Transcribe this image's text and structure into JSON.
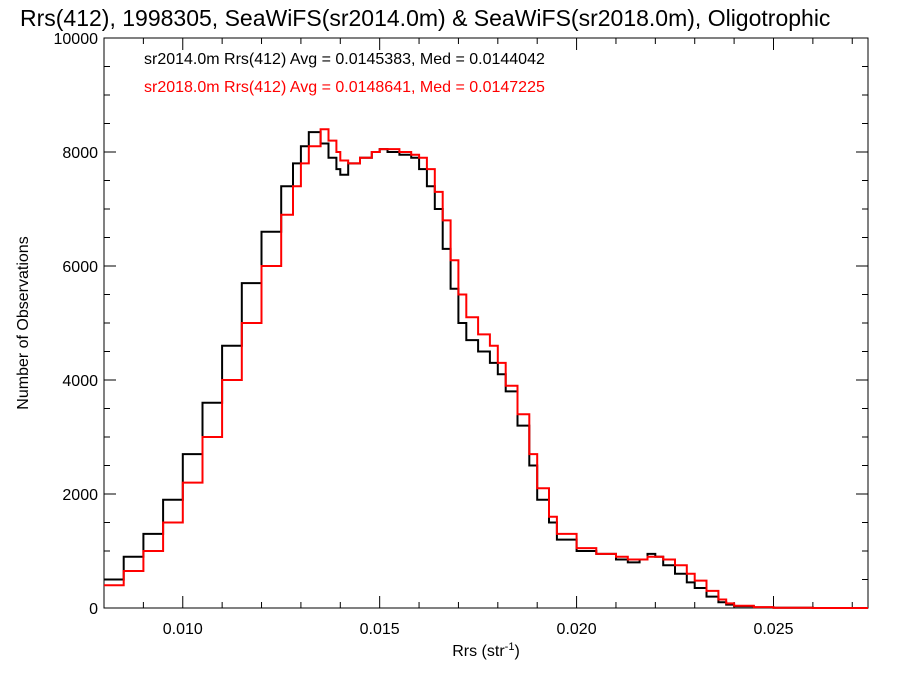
{
  "chart_data": {
    "type": "line",
    "title": "Rrs(412), 1998305, SeaWiFS(sr2014.0m) & SeaWiFS(sr2018.0m), Oligotrophic",
    "xlabel_main": "Rrs (str",
    "xlabel_sup": "-1",
    "xlabel_close": ")",
    "ylabel": "Number of Observations",
    "xlim": [
      0.008,
      0.0274
    ],
    "ylim": [
      0,
      10000
    ],
    "x_ticks": [
      0.01,
      0.015,
      0.02,
      0.025
    ],
    "x_tick_labels": [
      "0.010",
      "0.015",
      "0.020",
      "0.025"
    ],
    "y_ticks": [
      0,
      2000,
      4000,
      6000,
      8000,
      10000
    ],
    "y_tick_labels": [
      "0",
      "2000",
      "4000",
      "6000",
      "8000",
      "10000"
    ],
    "grid": false,
    "legend_position": "top-left",
    "series": [
      {
        "legend_text": "sr2014.0m Rrs(412) Avg = 0.0145383, Med = 0.0144042",
        "color": "#000000",
        "x": [
          0.008,
          0.0085,
          0.009,
          0.0095,
          0.01,
          0.0105,
          0.011,
          0.0115,
          0.012,
          0.0125,
          0.0128,
          0.013,
          0.0132,
          0.0135,
          0.0137,
          0.0139,
          0.014,
          0.0142,
          0.0145,
          0.0148,
          0.015,
          0.0152,
          0.0155,
          0.0158,
          0.016,
          0.0162,
          0.0164,
          0.0166,
          0.0168,
          0.017,
          0.0172,
          0.0175,
          0.0178,
          0.018,
          0.0182,
          0.0185,
          0.0188,
          0.019,
          0.0193,
          0.0195,
          0.02,
          0.0205,
          0.021,
          0.0213,
          0.0216,
          0.0218,
          0.022,
          0.0222,
          0.0225,
          0.0228,
          0.023,
          0.0233,
          0.0236,
          0.0238,
          0.024,
          0.0245,
          0.025,
          0.026,
          0.0274
        ],
        "y": [
          500,
          900,
          1300,
          1900,
          2700,
          3600,
          4600,
          5700,
          6600,
          7400,
          7800,
          8100,
          8350,
          8150,
          7900,
          7700,
          7600,
          7800,
          7900,
          8000,
          8050,
          8000,
          7950,
          7900,
          7700,
          7400,
          7000,
          6300,
          5600,
          5000,
          4700,
          4500,
          4300,
          4100,
          3800,
          3200,
          2500,
          1900,
          1500,
          1200,
          1000,
          950,
          850,
          800,
          850,
          950,
          900,
          750,
          600,
          450,
          350,
          200,
          100,
          60,
          30,
          10,
          5,
          0,
          0
        ]
      },
      {
        "legend_text": "sr2018.0m Rrs(412) Avg = 0.0148641, Med = 0.0147225",
        "color": "#ff0000",
        "x": [
          0.008,
          0.0085,
          0.009,
          0.0095,
          0.01,
          0.0105,
          0.011,
          0.0115,
          0.012,
          0.0125,
          0.0128,
          0.013,
          0.0132,
          0.0135,
          0.0137,
          0.0139,
          0.014,
          0.0142,
          0.0145,
          0.0148,
          0.015,
          0.0152,
          0.0155,
          0.0158,
          0.016,
          0.0162,
          0.0164,
          0.0166,
          0.0168,
          0.017,
          0.0172,
          0.0175,
          0.0178,
          0.018,
          0.0182,
          0.0185,
          0.0188,
          0.019,
          0.0193,
          0.0195,
          0.02,
          0.0205,
          0.021,
          0.0213,
          0.0216,
          0.0218,
          0.022,
          0.0222,
          0.0225,
          0.0228,
          0.023,
          0.0233,
          0.0236,
          0.0238,
          0.024,
          0.0245,
          0.025,
          0.026,
          0.0274
        ],
        "y": [
          400,
          650,
          1000,
          1500,
          2200,
          3000,
          4000,
          5000,
          6000,
          6900,
          7400,
          7800,
          8100,
          8400,
          8200,
          8000,
          7850,
          7800,
          7900,
          8000,
          8050,
          8050,
          8000,
          7950,
          7900,
          7700,
          7300,
          6800,
          6100,
          5500,
          5100,
          4800,
          4600,
          4300,
          3900,
          3400,
          2700,
          2100,
          1600,
          1300,
          1050,
          950,
          900,
          850,
          850,
          900,
          900,
          850,
          750,
          600,
          480,
          300,
          150,
          80,
          40,
          15,
          5,
          0,
          0
        ]
      }
    ]
  }
}
